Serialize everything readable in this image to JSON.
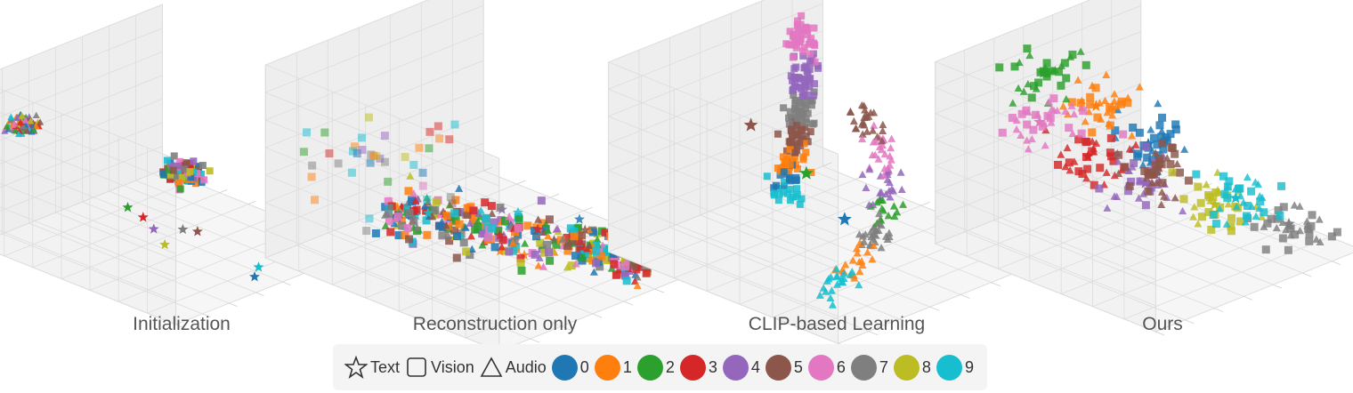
{
  "chart_data": [
    {
      "type": "scatter",
      "title": "Initialization",
      "projection": "3d",
      "grid": true,
      "clusters": [
        {
          "modality": "audio",
          "point": [
            -0.9,
            0.6,
            0.3
          ],
          "classes": [
            0,
            1,
            2,
            3,
            4,
            5,
            6,
            7,
            8,
            9
          ],
          "spread": 0.05
        },
        {
          "modality": "vision",
          "point": [
            0.8,
            0.7,
            0.6
          ],
          "classes": [
            0,
            1,
            2,
            3,
            4,
            5,
            6,
            7,
            8,
            9
          ],
          "spread": 0.08
        },
        {
          "modality": "text",
          "class": 2,
          "point": [
            -0.6,
            -0.2,
            -0.9
          ]
        },
        {
          "modality": "text",
          "class": 3,
          "point": [
            -0.4,
            -0.15,
            -0.9
          ]
        },
        {
          "modality": "text",
          "class": 4,
          "point": [
            -0.2,
            -0.05,
            -0.9
          ]
        },
        {
          "modality": "text",
          "class": 7,
          "point": [
            -0.05,
            -0.2,
            -0.9
          ]
        },
        {
          "modality": "text",
          "class": 5,
          "point": [
            0.05,
            -0.25,
            -0.9
          ]
        },
        {
          "modality": "text",
          "class": 8,
          "point": [
            0.05,
            0.1,
            -0.9
          ]
        },
        {
          "modality": "text",
          "class": 1,
          "point": [
            0.2,
            -0.9,
            -0.9
          ]
        },
        {
          "modality": "text",
          "class": 6,
          "point": [
            0.6,
            -0.6,
            -0.9
          ]
        },
        {
          "modality": "text",
          "class": 9,
          "point": [
            0.8,
            -0.1,
            -0.9
          ]
        },
        {
          "modality": "text",
          "class": 0,
          "point": [
            0.9,
            0.05,
            -0.9
          ]
        }
      ]
    },
    {
      "type": "scatter",
      "title": "Reconstruction only",
      "projection": "3d",
      "grid": true,
      "description": "all modalities and classes mixed along one curved band"
    },
    {
      "type": "scatter",
      "title": "CLIP-based Learning",
      "projection": "3d",
      "grid": true,
      "description": "vision points form one arc, audio points a separate arc; text points sit with audio"
    },
    {
      "type": "scatter",
      "title": "Ours",
      "projection": "3d",
      "grid": true,
      "description": "classes form separate clusters around a ring, all modalities of a class together"
    }
  ],
  "legend": {
    "modalities": [
      {
        "shape": "star",
        "label": "Text"
      },
      {
        "shape": "square",
        "label": "Vision"
      },
      {
        "shape": "triangle",
        "label": "Audio"
      }
    ],
    "classes": [
      {
        "label": "0",
        "color": "#1f77b4"
      },
      {
        "label": "1",
        "color": "#ff7f0e"
      },
      {
        "label": "2",
        "color": "#2ca02c"
      },
      {
        "label": "3",
        "color": "#d62728"
      },
      {
        "label": "4",
        "color": "#9467bd"
      },
      {
        "label": "5",
        "color": "#8c564b"
      },
      {
        "label": "6",
        "color": "#e377c2"
      },
      {
        "label": "7",
        "color": "#7f7f7f"
      },
      {
        "label": "8",
        "color": "#bcbd22"
      },
      {
        "label": "9",
        "color": "#17becf"
      }
    ]
  }
}
